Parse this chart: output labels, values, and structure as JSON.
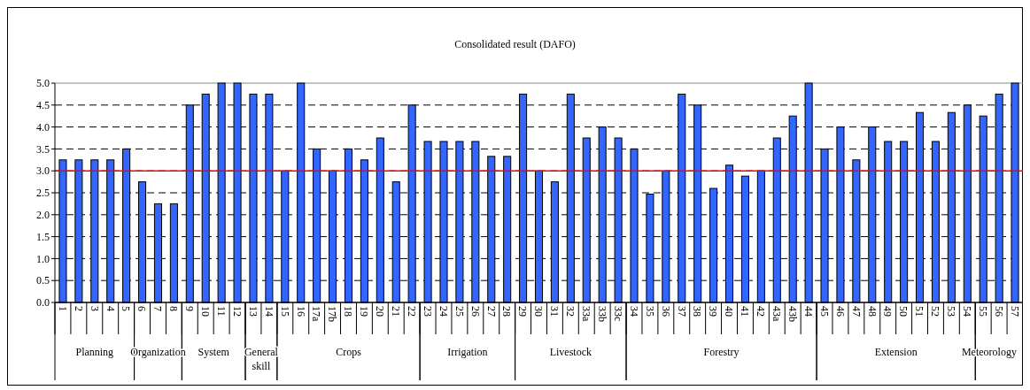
{
  "chart_data": {
    "type": "bar",
    "title": "Consolidated result (DAFO)",
    "categories": [
      "1",
      "2",
      "3",
      "4",
      "5",
      "6",
      "7",
      "8",
      "9",
      "10",
      "11",
      "12",
      "13",
      "14",
      "15",
      "16",
      "17a",
      "17b",
      "18",
      "19",
      "20",
      "21",
      "22",
      "23",
      "24",
      "25",
      "26",
      "27",
      "28",
      "29",
      "30",
      "31",
      "32",
      "33a",
      "33b",
      "33c",
      "34",
      "35",
      "36",
      "37",
      "38",
      "39",
      "40",
      "41",
      "42",
      "43a",
      "43b",
      "44",
      "45",
      "46",
      "47",
      "48",
      "49",
      "50",
      "51",
      "52",
      "53",
      "54",
      "55",
      "56",
      "57"
    ],
    "values": [
      3.25,
      3.25,
      3.25,
      3.25,
      3.5,
      2.75,
      2.25,
      2.25,
      4.5,
      4.75,
      5,
      5,
      4.75,
      4.75,
      3,
      5,
      3.5,
      3,
      3.5,
      3.25,
      3.75,
      2.75,
      4.5,
      3.67,
      3.67,
      3.67,
      3.67,
      3.33,
      3.33,
      4.75,
      3,
      2.75,
      4.75,
      3.75,
      4,
      3.75,
      3.5,
      2.47,
      3,
      4.75,
      4.5,
      2.6,
      3.13,
      2.88,
      3,
      3.75,
      4.25,
      5,
      3.5,
      4,
      3.25,
      4,
      3.67,
      3.67,
      4.33,
      3.67,
      4.33,
      4.5,
      4.25,
      4.75,
      5
    ],
    "color": "#3366ff",
    "ylim": [
      0,
      5
    ],
    "yticks": [
      {
        "value": 0,
        "label": "0.0"
      },
      {
        "value": 0.5,
        "label": "0.5"
      },
      {
        "value": 1,
        "label": "1.0"
      },
      {
        "value": 1.5,
        "label": "1.5"
      },
      {
        "value": 2,
        "label": "2.0"
      },
      {
        "value": 2.5,
        "label": "2.5"
      },
      {
        "value": 3,
        "label": "3.0"
      },
      {
        "value": 3.5,
        "label": "3.5"
      },
      {
        "value": 4,
        "label": "4.0"
      },
      {
        "value": 4.5,
        "label": "4.5"
      },
      {
        "value": 5,
        "label": "5.0"
      }
    ],
    "grid": "y",
    "ref_lines": [
      {
        "axis": "y",
        "value": 3,
        "color": "#ff0000"
      }
    ],
    "annotations": [
      "Planning",
      "Organization",
      "System",
      "General skill",
      "Crops",
      "Irrigation",
      "Livestock",
      "Forestry",
      "Extension",
      "Meteorology"
    ]
  }
}
